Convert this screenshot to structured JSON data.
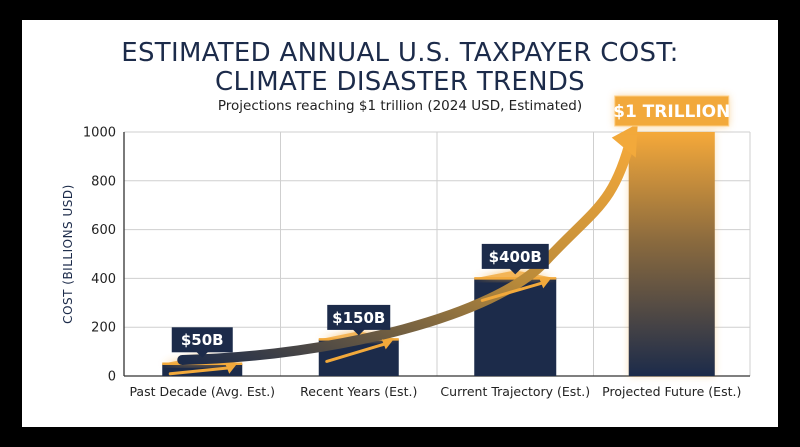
{
  "colors": {
    "bar": "#1c2b4a",
    "accent": "#f2a93b",
    "grid": "#cfcfcf",
    "text": "#1c2b4a"
  },
  "chart_data": {
    "type": "bar",
    "title_lines": [
      "ESTIMATED ANNUAL U.S. TAXPAYER COST:",
      "CLIMATE DISASTER TRENDS"
    ],
    "subtitle": "Projections reaching $1 trillion (2024 USD, Estimated)",
    "xlabel": "",
    "ylabel": "COST (BILLIONS USD)",
    "ylim": [
      0,
      1000
    ],
    "yticks": [
      0,
      200,
      400,
      600,
      800,
      1000
    ],
    "grid": true,
    "categories": [
      "Past Decade (Avg. Est.)",
      "Recent Years (Est.)",
      "Current Trajectory (Est.)",
      "Projected Future (Est.)"
    ],
    "values": [
      50,
      150,
      400,
      1000
    ],
    "data_labels": [
      "$50B",
      "$150B",
      "$400B",
      "$1 TRILLION"
    ],
    "annotations": "Orange trend arrow rising through bars toward $1 trillion"
  }
}
